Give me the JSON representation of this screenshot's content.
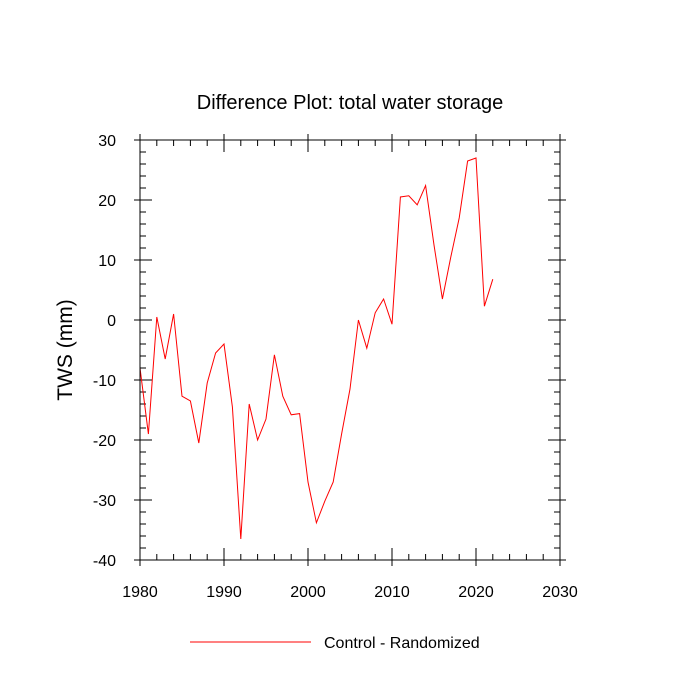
{
  "chart_data": {
    "type": "line",
    "title": "Difference Plot: total water storage",
    "xlabel": "",
    "ylabel": "TWS  (mm)",
    "xlim": [
      1980,
      2030
    ],
    "ylim": [
      -40,
      30
    ],
    "xticks": [
      1980,
      1990,
      2000,
      2010,
      2020,
      2030
    ],
    "yticks": [
      -40,
      -30,
      -20,
      -10,
      0,
      10,
      20,
      30
    ],
    "x_minor_step": 2,
    "y_minor_step": 2,
    "grid": false,
    "legend_position": "bottom-center",
    "series": [
      {
        "name": "Control - Randomized",
        "color": "#ff0000",
        "x": [
          1980,
          1981,
          1982,
          1983,
          1984,
          1985,
          1986,
          1987,
          1988,
          1989,
          1990,
          1991,
          1992,
          1993,
          1994,
          1995,
          1996,
          1997,
          1998,
          1999,
          2000,
          2001,
          2002,
          2003,
          2004,
          2005,
          2006,
          2007,
          2008,
          2009,
          2010,
          2011,
          2012,
          2013,
          2014,
          2015,
          2016,
          2017,
          2018,
          2019,
          2020,
          2021,
          2022
        ],
        "values": [
          -8,
          -19,
          0.5,
          -6.5,
          1,
          -12.7,
          -13.5,
          -20.5,
          -10.5,
          -5.5,
          -4,
          -14.5,
          -36.5,
          -14,
          -20,
          -16.5,
          -5.8,
          -12.7,
          -15.8,
          -15.6,
          -27,
          -33.8,
          -30.2,
          -27,
          -19,
          -11.5,
          0,
          -4.7,
          1.2,
          3.5,
          -0.7,
          20.5,
          20.7,
          19.2,
          22.4,
          12.5,
          3.5,
          10.5,
          17,
          26.5,
          27,
          2.3,
          6.8
        ]
      }
    ]
  }
}
